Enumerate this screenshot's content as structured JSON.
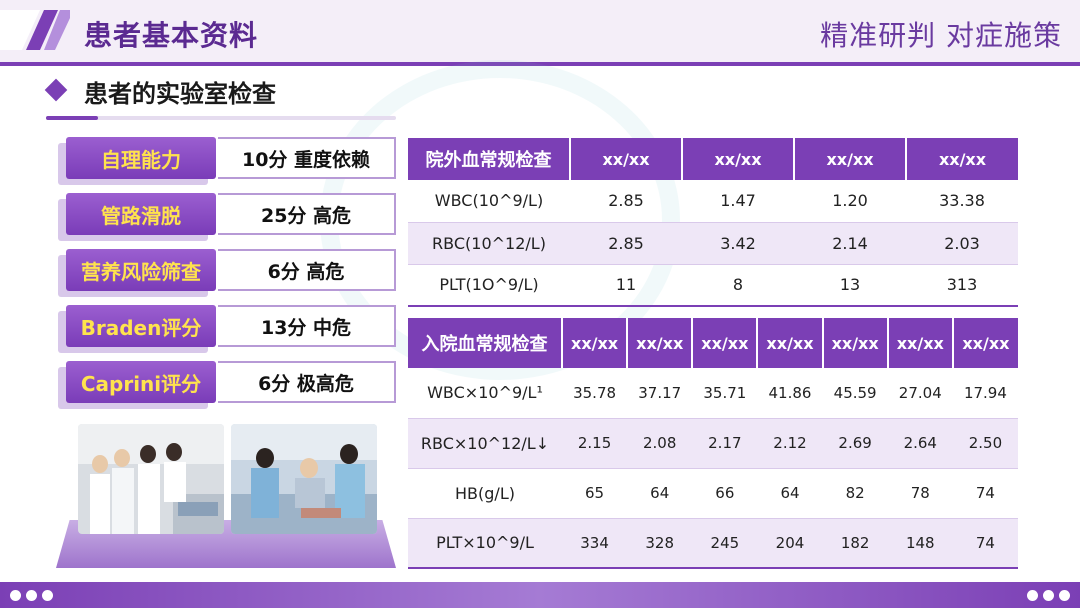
{
  "header": {
    "title": "患者基本资料",
    "slogan": "精准研判  对症施策",
    "accent_color": "#7b3fb5"
  },
  "section": {
    "title": "患者的实验室检查",
    "icon": "diamond-icon"
  },
  "scores": [
    {
      "label": "自理能力",
      "value": "10分 重度依赖"
    },
    {
      "label": "管路滑脱",
      "value": "25分 高危"
    },
    {
      "label": "营养风险筛查",
      "value": "6分 高危"
    },
    {
      "label": "Braden评分",
      "value": "13分 中危"
    },
    {
      "label": "Caprini评分",
      "value": "6分 极高危"
    }
  ],
  "photos": [
    "ward-rounds-photo",
    "bedside-care-photo"
  ],
  "outpatient_table": {
    "headers": [
      "院外血常规检查",
      "xx/xx",
      "xx/xx",
      "xx/xx",
      "xx/xx"
    ],
    "rows": [
      [
        "WBC(10^9/L)",
        "2.85",
        "1.47",
        "1.20",
        "33.38"
      ],
      [
        "RBC(10^12/L)",
        "2.85",
        "3.42",
        "2.14",
        "2.03"
      ],
      [
        "PLT(1O^9/L)",
        "11",
        "8",
        "13",
        "313"
      ]
    ]
  },
  "admission_table": {
    "headers": [
      "入院血常规检查",
      "xx/xx",
      "xx/xx",
      "xx/xx",
      "xx/xx",
      "xx/xx",
      "xx/xx",
      "xx/xx"
    ],
    "rows": [
      [
        "WBC×10^9/L¹",
        "35.78",
        "37.17",
        "35.71",
        "41.86",
        "45.59",
        "27.04",
        "17.94"
      ],
      [
        "RBC×10^12/L↓",
        "2.15",
        "2.08",
        "2.17",
        "2.12",
        "2.69",
        "2.64",
        "2.50"
      ],
      [
        "HB(g/L)",
        "65",
        "64",
        "66",
        "64",
        "82",
        "78",
        "74"
      ],
      [
        "PLT×10^9/L",
        "334",
        "328",
        "245",
        "204",
        "182",
        "148",
        "74"
      ]
    ]
  }
}
